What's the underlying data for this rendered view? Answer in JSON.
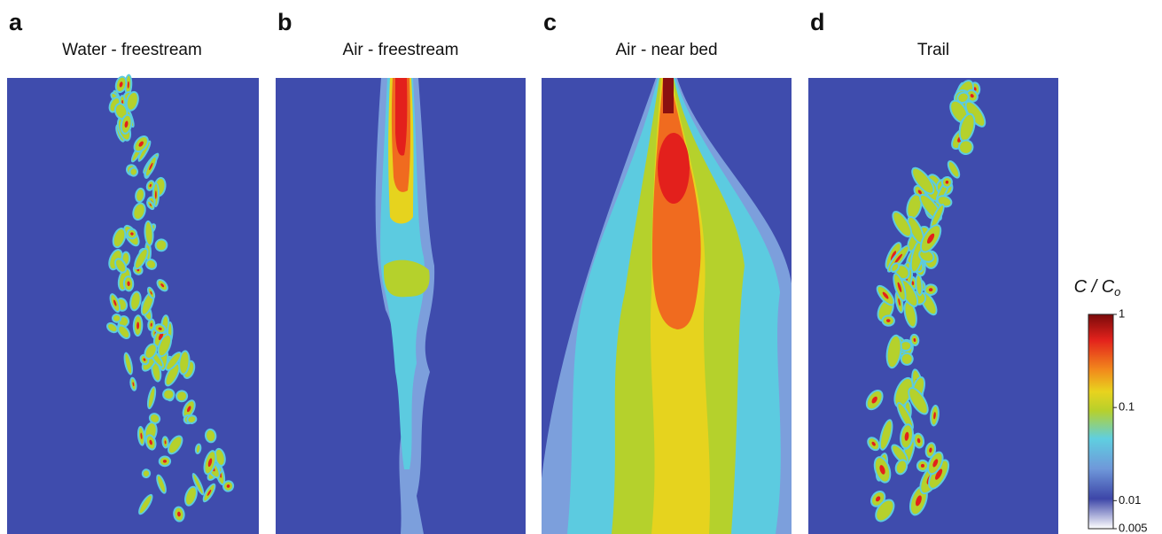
{
  "panels": [
    {
      "letter": "a",
      "title": "Water - freestream"
    },
    {
      "letter": "b",
      "title": "Air - freestream"
    },
    {
      "letter": "c",
      "title": "Air - near bed"
    },
    {
      "letter": "d",
      "title": "Trail"
    }
  ],
  "colorbar": {
    "label": "C / C",
    "label_subscript": "o",
    "scale": "log",
    "lim": [
      0.005,
      1
    ],
    "ticks": [
      1,
      0.1,
      0.01,
      0.005
    ]
  }
}
